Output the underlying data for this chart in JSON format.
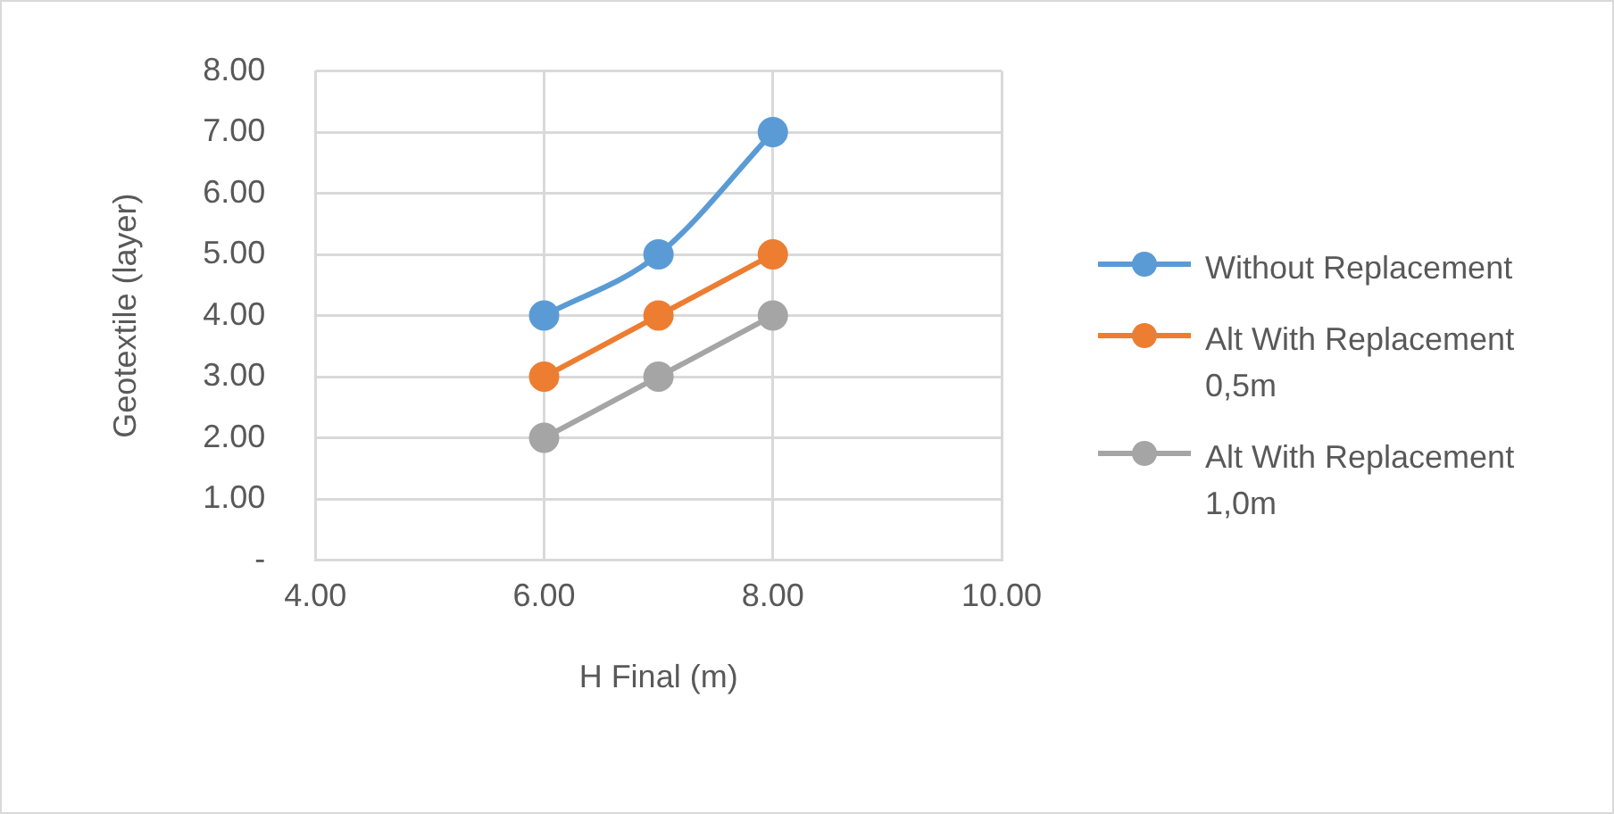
{
  "chart_data": {
    "type": "line",
    "xlabel": "H Final (m)",
    "ylabel": "Geotextile (layer)",
    "x": [
      6,
      7,
      8
    ],
    "series": [
      {
        "name": "Without Replacement",
        "color": "#5b9bd5",
        "values": [
          4,
          5,
          7
        ]
      },
      {
        "name": "Alt With Replacement 0,5m",
        "color": "#ed7d31",
        "values": [
          3,
          4,
          5
        ]
      },
      {
        "name": "Alt With Replacement 1,0m",
        "color": "#a5a5a5",
        "values": [
          2,
          3,
          4
        ]
      }
    ],
    "xlim": [
      4,
      10
    ],
    "xticks": [
      {
        "value": 4,
        "label": "4.00"
      },
      {
        "value": 6,
        "label": "6.00"
      },
      {
        "value": 8,
        "label": "8.00"
      },
      {
        "value": 10,
        "label": "10.00"
      }
    ],
    "ylim": [
      0,
      8
    ],
    "yticks": [
      {
        "value": 0,
        "label": "-"
      },
      {
        "value": 1,
        "label": "1.00"
      },
      {
        "value": 2,
        "label": "2.00"
      },
      {
        "value": 3,
        "label": "3.00"
      },
      {
        "value": 4,
        "label": "4.00"
      },
      {
        "value": 5,
        "label": "5.00"
      },
      {
        "value": 6,
        "label": "6.00"
      },
      {
        "value": 7,
        "label": "7.00"
      },
      {
        "value": 8,
        "label": "8.00"
      }
    ],
    "grid": true,
    "legend": "right",
    "marker": "circle",
    "line_style": "solid"
  }
}
